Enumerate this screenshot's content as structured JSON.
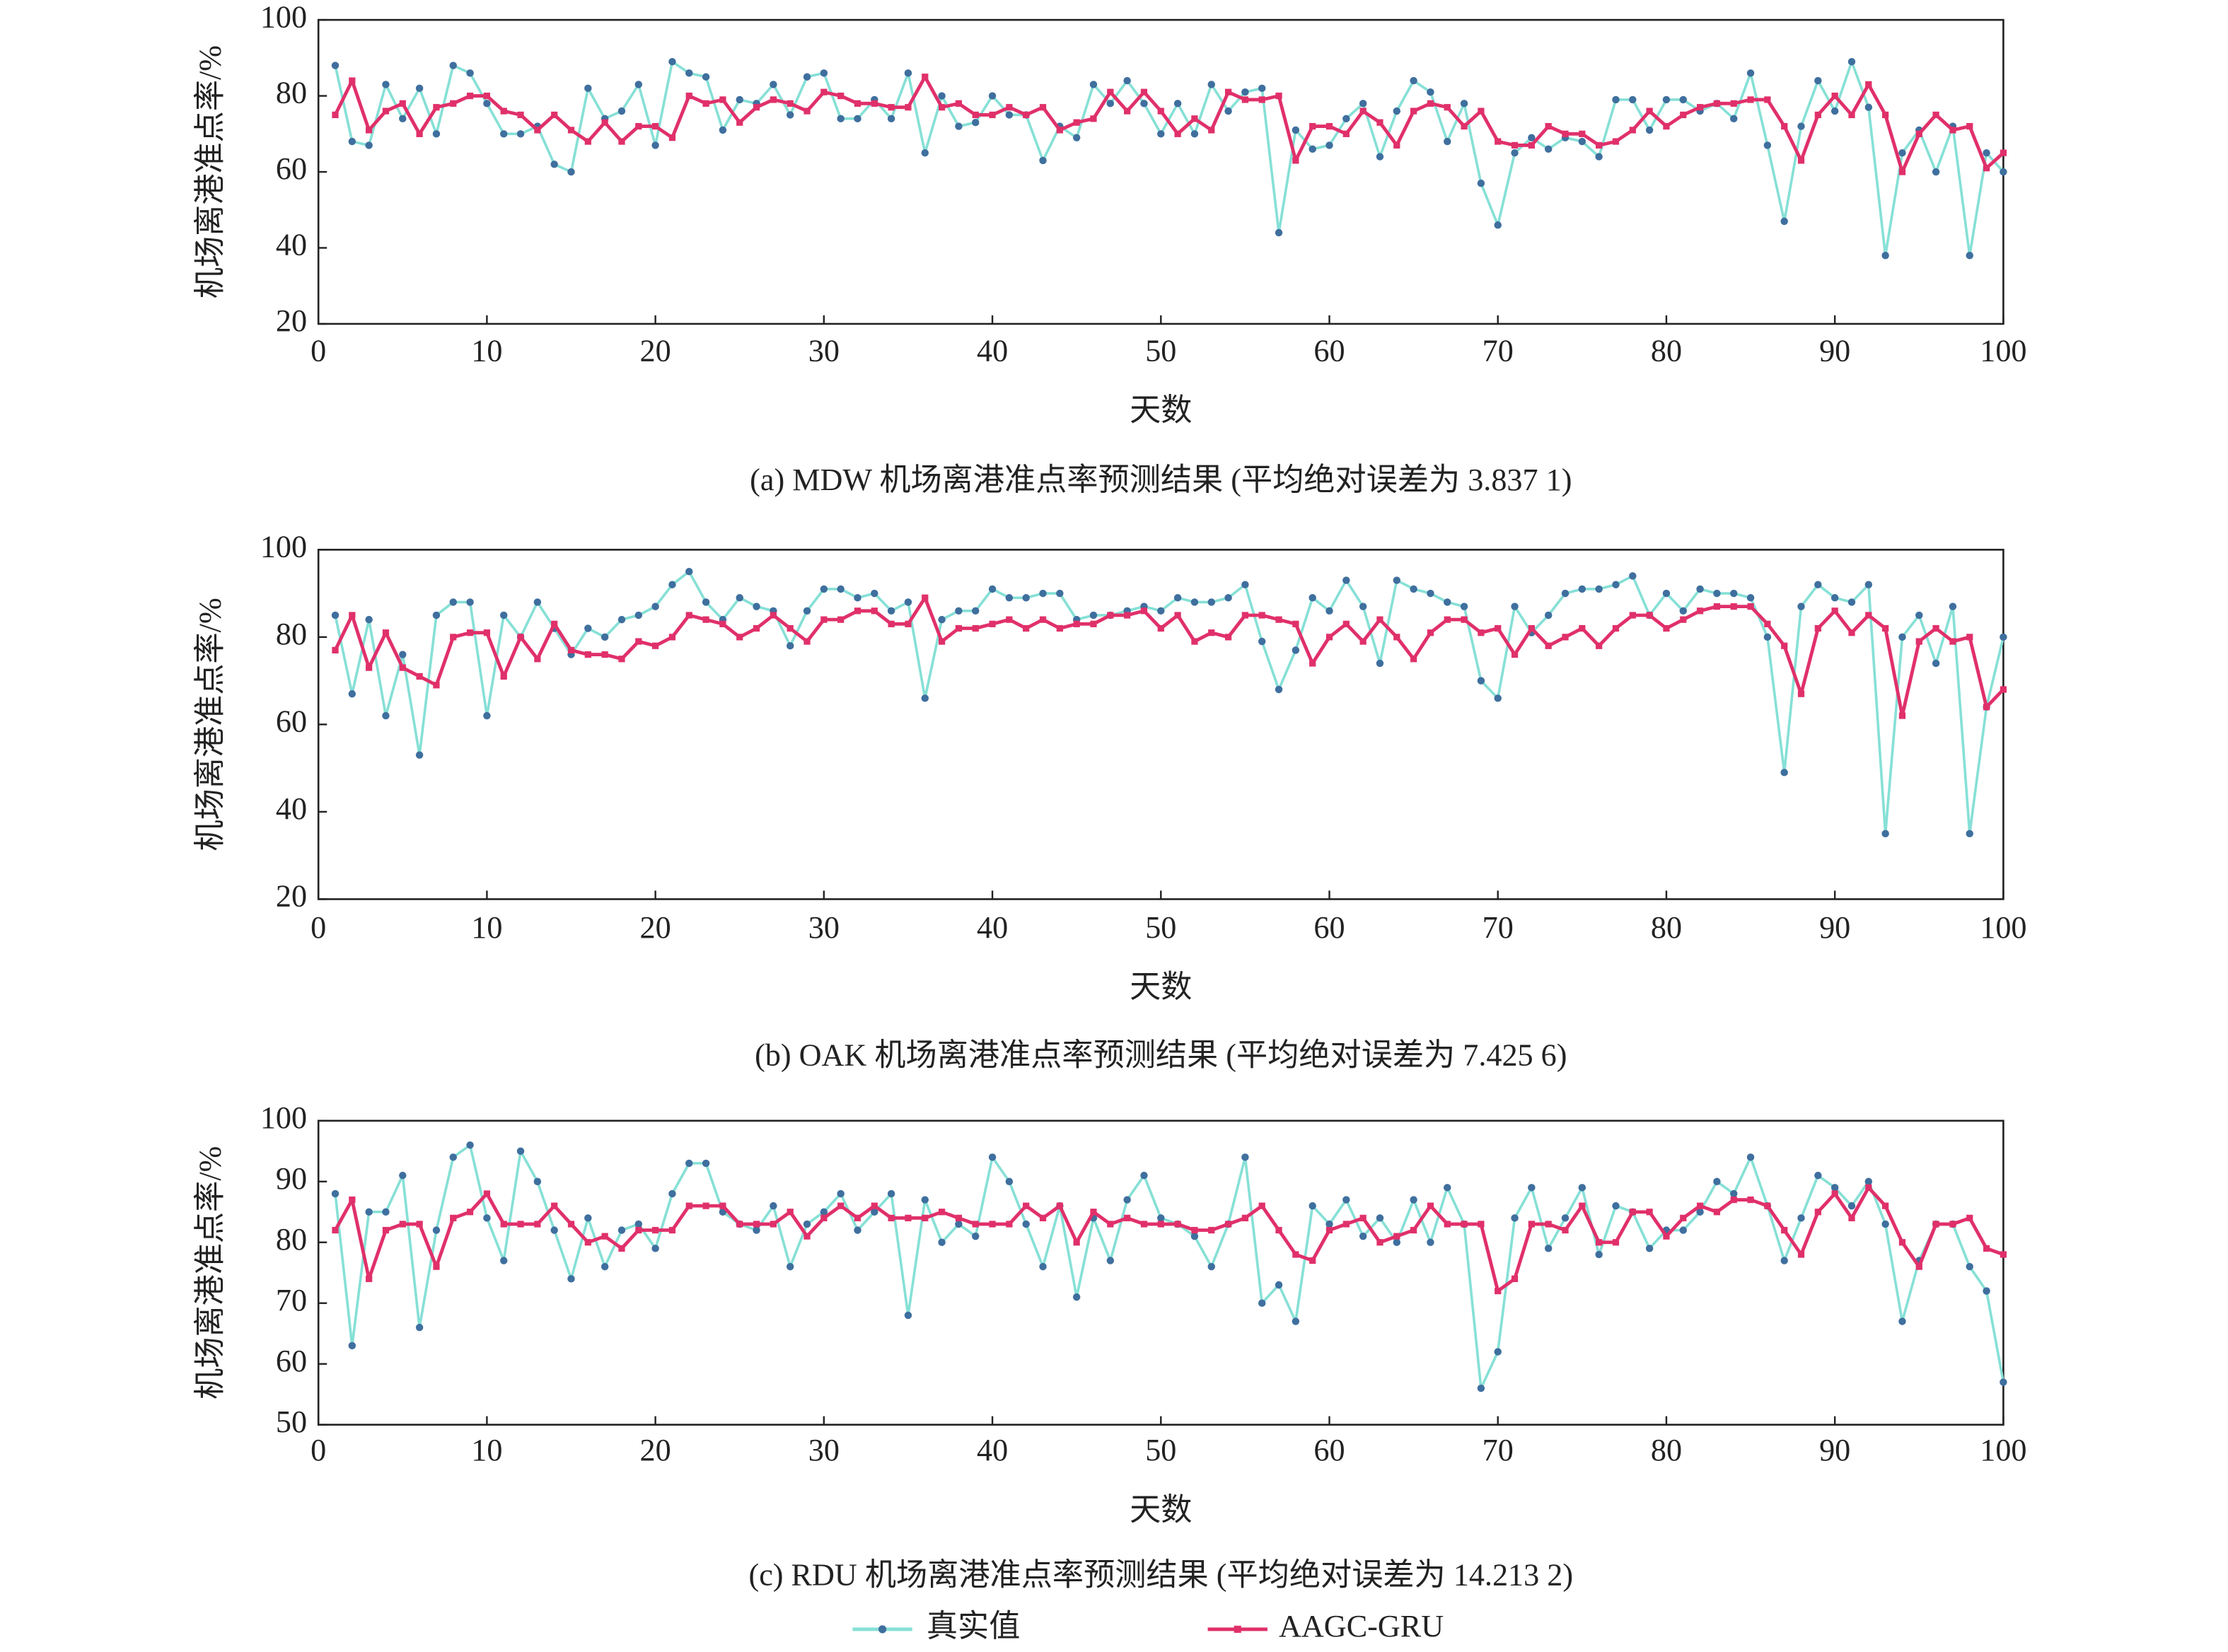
{
  "chart_data": [
    {
      "type": "line",
      "xlabel": "天数",
      "ylabel": "机场离港准点率/%",
      "caption": "(a) MDW 机场离港准点率预测结果 (平均绝对误差为 3.837 1)",
      "x": [
        1,
        2,
        3,
        4,
        5,
        6,
        7,
        8,
        9,
        10,
        11,
        12,
        13,
        14,
        15,
        16,
        17,
        18,
        19,
        20,
        21,
        22,
        23,
        24,
        25,
        26,
        27,
        28,
        29,
        30,
        31,
        32,
        33,
        34,
        35,
        36,
        37,
        38,
        39,
        40,
        41,
        42,
        43,
        44,
        45,
        46,
        47,
        48,
        49,
        50,
        51,
        52,
        53,
        54,
        55,
        56,
        57,
        58,
        59,
        60,
        61,
        62,
        63,
        64,
        65,
        66,
        67,
        68,
        69,
        70,
        71,
        72,
        73,
        74,
        75,
        76,
        77,
        78,
        79,
        80,
        81,
        82,
        83,
        84,
        85,
        86,
        87,
        88,
        89,
        90,
        91,
        92,
        93,
        94,
        95,
        96,
        97,
        98,
        99,
        100
      ],
      "xlim": [
        0,
        100
      ],
      "xticks": [
        0,
        10,
        20,
        30,
        40,
        50,
        60,
        70,
        80,
        90,
        100
      ],
      "ylim": [
        20,
        100
      ],
      "yticks": [
        20,
        40,
        60,
        80,
        100
      ],
      "series": [
        {
          "name": "真实值",
          "color": "#86e0d6",
          "marker_color": "#3f6f9e",
          "values": [
            88,
            68,
            67,
            83,
            74,
            82,
            70,
            88,
            86,
            78,
            70,
            70,
            72,
            62,
            60,
            82,
            74,
            76,
            83,
            67,
            89,
            86,
            85,
            71,
            79,
            78,
            83,
            75,
            85,
            86,
            74,
            74,
            79,
            74,
            86,
            65,
            80,
            72,
            73,
            80,
            75,
            75,
            63,
            72,
            69,
            83,
            78,
            84,
            78,
            70,
            78,
            70,
            83,
            76,
            81,
            82,
            44,
            71,
            66,
            67,
            74,
            78,
            64,
            76,
            84,
            81,
            68,
            78,
            57,
            46,
            65,
            69,
            66,
            69,
            68,
            64,
            79,
            79,
            71,
            79,
            79,
            76,
            78,
            74,
            86,
            67,
            47,
            72,
            84,
            76,
            89,
            77,
            38,
            65,
            71,
            60,
            72,
            38,
            65,
            60
          ]
        },
        {
          "name": "AAGC-GRU",
          "color": "#e0306a",
          "values": [
            75,
            84,
            71,
            76,
            78,
            70,
            77,
            78,
            80,
            80,
            76,
            75,
            71,
            75,
            71,
            68,
            73,
            68,
            72,
            72,
            69,
            80,
            78,
            79,
            73,
            77,
            79,
            78,
            76,
            81,
            80,
            78,
            78,
            77,
            77,
            85,
            77,
            78,
            75,
            75,
            77,
            75,
            77,
            71,
            73,
            74,
            81,
            76,
            81,
            76,
            70,
            74,
            71,
            81,
            79,
            79,
            80,
            63,
            72,
            72,
            70,
            76,
            73,
            67,
            76,
            78,
            77,
            72,
            76,
            68,
            67,
            67,
            72,
            70,
            70,
            67,
            68,
            71,
            76,
            72,
            75,
            77,
            78,
            78,
            79,
            79,
            72,
            63,
            75,
            80,
            75,
            83,
            75,
            60,
            70,
            75,
            71,
            72,
            61,
            65
          ]
        }
      ]
    },
    {
      "type": "line",
      "xlabel": "天数",
      "ylabel": "机场离港准点率/%",
      "caption": "(b) OAK 机场离港准点率预测结果 (平均绝对误差为 7.425 6)",
      "x": [
        1,
        2,
        3,
        4,
        5,
        6,
        7,
        8,
        9,
        10,
        11,
        12,
        13,
        14,
        15,
        16,
        17,
        18,
        19,
        20,
        21,
        22,
        23,
        24,
        25,
        26,
        27,
        28,
        29,
        30,
        31,
        32,
        33,
        34,
        35,
        36,
        37,
        38,
        39,
        40,
        41,
        42,
        43,
        44,
        45,
        46,
        47,
        48,
        49,
        50,
        51,
        52,
        53,
        54,
        55,
        56,
        57,
        58,
        59,
        60,
        61,
        62,
        63,
        64,
        65,
        66,
        67,
        68,
        69,
        70,
        71,
        72,
        73,
        74,
        75,
        76,
        77,
        78,
        79,
        80,
        81,
        82,
        83,
        84,
        85,
        86,
        87,
        88,
        89,
        90,
        91,
        92,
        93,
        94,
        95,
        96,
        97,
        98,
        99,
        100
      ],
      "xlim": [
        0,
        100
      ],
      "xticks": [
        0,
        10,
        20,
        30,
        40,
        50,
        60,
        70,
        80,
        90,
        100
      ],
      "ylim": [
        20,
        100
      ],
      "yticks": [
        20,
        40,
        60,
        80,
        100
      ],
      "series": [
        {
          "color": "#86e0d6",
          "marker_color": "#3f6f9e",
          "values": [
            85,
            67,
            84,
            62,
            76,
            53,
            85,
            88,
            88,
            62,
            85,
            80,
            88,
            82,
            76,
            82,
            80,
            84,
            85,
            87,
            92,
            95,
            88,
            84,
            89,
            87,
            86,
            78,
            86,
            91,
            91,
            89,
            90,
            86,
            88,
            66,
            84,
            86,
            86,
            91,
            89,
            89,
            90,
            90,
            84,
            85,
            85,
            86,
            87,
            86,
            89,
            88,
            88,
            89,
            92,
            79,
            68,
            77,
            89,
            86,
            93,
            87,
            74,
            93,
            91,
            90,
            88,
            87,
            70,
            66,
            87,
            81,
            85,
            90,
            91,
            91,
            92,
            94,
            85,
            90,
            86,
            91,
            90,
            90,
            89,
            80,
            49,
            87,
            92,
            89,
            88,
            92,
            35,
            80,
            85,
            74,
            87,
            35,
            64,
            80
          ]
        },
        {
          "color": "#e0306a",
          "values": [
            77,
            85,
            73,
            81,
            73,
            71,
            69,
            80,
            81,
            81,
            71,
            80,
            75,
            83,
            77,
            76,
            76,
            75,
            79,
            78,
            80,
            85,
            84,
            83,
            80,
            82,
            85,
            82,
            79,
            84,
            84,
            86,
            86,
            83,
            83,
            89,
            79,
            82,
            82,
            83,
            84,
            82,
            84,
            82,
            83,
            83,
            85,
            85,
            86,
            82,
            85,
            79,
            81,
            80,
            85,
            85,
            84,
            83,
            74,
            80,
            83,
            79,
            84,
            80,
            75,
            81,
            84,
            84,
            81,
            82,
            76,
            82,
            78,
            80,
            82,
            78,
            82,
            85,
            85,
            82,
            84,
            86,
            87,
            87,
            87,
            83,
            78,
            67,
            82,
            86,
            81,
            85,
            82,
            62,
            79,
            82,
            79,
            80,
            64,
            68
          ]
        }
      ]
    },
    {
      "type": "line",
      "xlabel": "天数",
      "ylabel": "机场离港准点率/%",
      "caption": "(c) RDU 机场离港准点率预测结果 (平均绝对误差为 14.213 2)",
      "x": [
        1,
        2,
        3,
        4,
        5,
        6,
        7,
        8,
        9,
        10,
        11,
        12,
        13,
        14,
        15,
        16,
        17,
        18,
        19,
        20,
        21,
        22,
        23,
        24,
        25,
        26,
        27,
        28,
        29,
        30,
        31,
        32,
        33,
        34,
        35,
        36,
        37,
        38,
        39,
        40,
        41,
        42,
        43,
        44,
        45,
        46,
        47,
        48,
        49,
        50,
        51,
        52,
        53,
        54,
        55,
        56,
        57,
        58,
        59,
        60,
        61,
        62,
        63,
        64,
        65,
        66,
        67,
        68,
        69,
        70,
        71,
        72,
        73,
        74,
        75,
        76,
        77,
        78,
        79,
        80,
        81,
        82,
        83,
        84,
        85,
        86,
        87,
        88,
        89,
        90,
        91,
        92,
        93,
        94,
        95,
        96,
        97,
        98,
        99,
        100
      ],
      "xlim": [
        0,
        100
      ],
      "xticks": [
        0,
        10,
        20,
        30,
        40,
        50,
        60,
        70,
        80,
        90,
        100
      ],
      "ylim": [
        50,
        100
      ],
      "yticks": [
        50,
        60,
        70,
        80,
        90,
        100
      ],
      "series": [
        {
          "color": "#86e0d6",
          "marker_color": "#3f6f9e",
          "values": [
            88,
            63,
            85,
            85,
            91,
            66,
            82,
            94,
            96,
            84,
            77,
            95,
            90,
            82,
            74,
            84,
            76,
            82,
            83,
            79,
            88,
            93,
            93,
            85,
            83,
            82,
            86,
            76,
            83,
            85,
            88,
            82,
            85,
            88,
            68,
            87,
            80,
            83,
            81,
            94,
            90,
            83,
            76,
            86,
            71,
            84,
            77,
            87,
            91,
            84,
            83,
            81,
            76,
            83,
            94,
            70,
            73,
            67,
            86,
            83,
            87,
            81,
            84,
            80,
            87,
            80,
            89,
            83,
            56,
            62,
            84,
            89,
            79,
            84,
            89,
            78,
            86,
            85,
            79,
            82,
            82,
            85,
            90,
            88,
            94,
            86,
            77,
            84,
            91,
            89,
            86,
            90,
            83,
            67,
            77,
            83,
            83,
            76,
            72,
            57
          ]
        },
        {
          "color": "#e0306a",
          "values": [
            82,
            87,
            74,
            82,
            83,
            83,
            76,
            84,
            85,
            88,
            83,
            83,
            83,
            86,
            83,
            80,
            81,
            79,
            82,
            82,
            82,
            86,
            86,
            86,
            83,
            83,
            83,
            85,
            81,
            84,
            86,
            84,
            86,
            84,
            84,
            84,
            85,
            84,
            83,
            83,
            83,
            86,
            84,
            86,
            80,
            85,
            83,
            84,
            83,
            83,
            83,
            82,
            82,
            83,
            84,
            86,
            82,
            78,
            77,
            82,
            83,
            84,
            80,
            81,
            82,
            86,
            83,
            83,
            83,
            72,
            74,
            83,
            83,
            82,
            86,
            80,
            80,
            85,
            85,
            81,
            84,
            86,
            85,
            87,
            87,
            86,
            82,
            78,
            85,
            88,
            84,
            89,
            86,
            80,
            76,
            83,
            83,
            84,
            79,
            78
          ]
        }
      ]
    }
  ]
}
